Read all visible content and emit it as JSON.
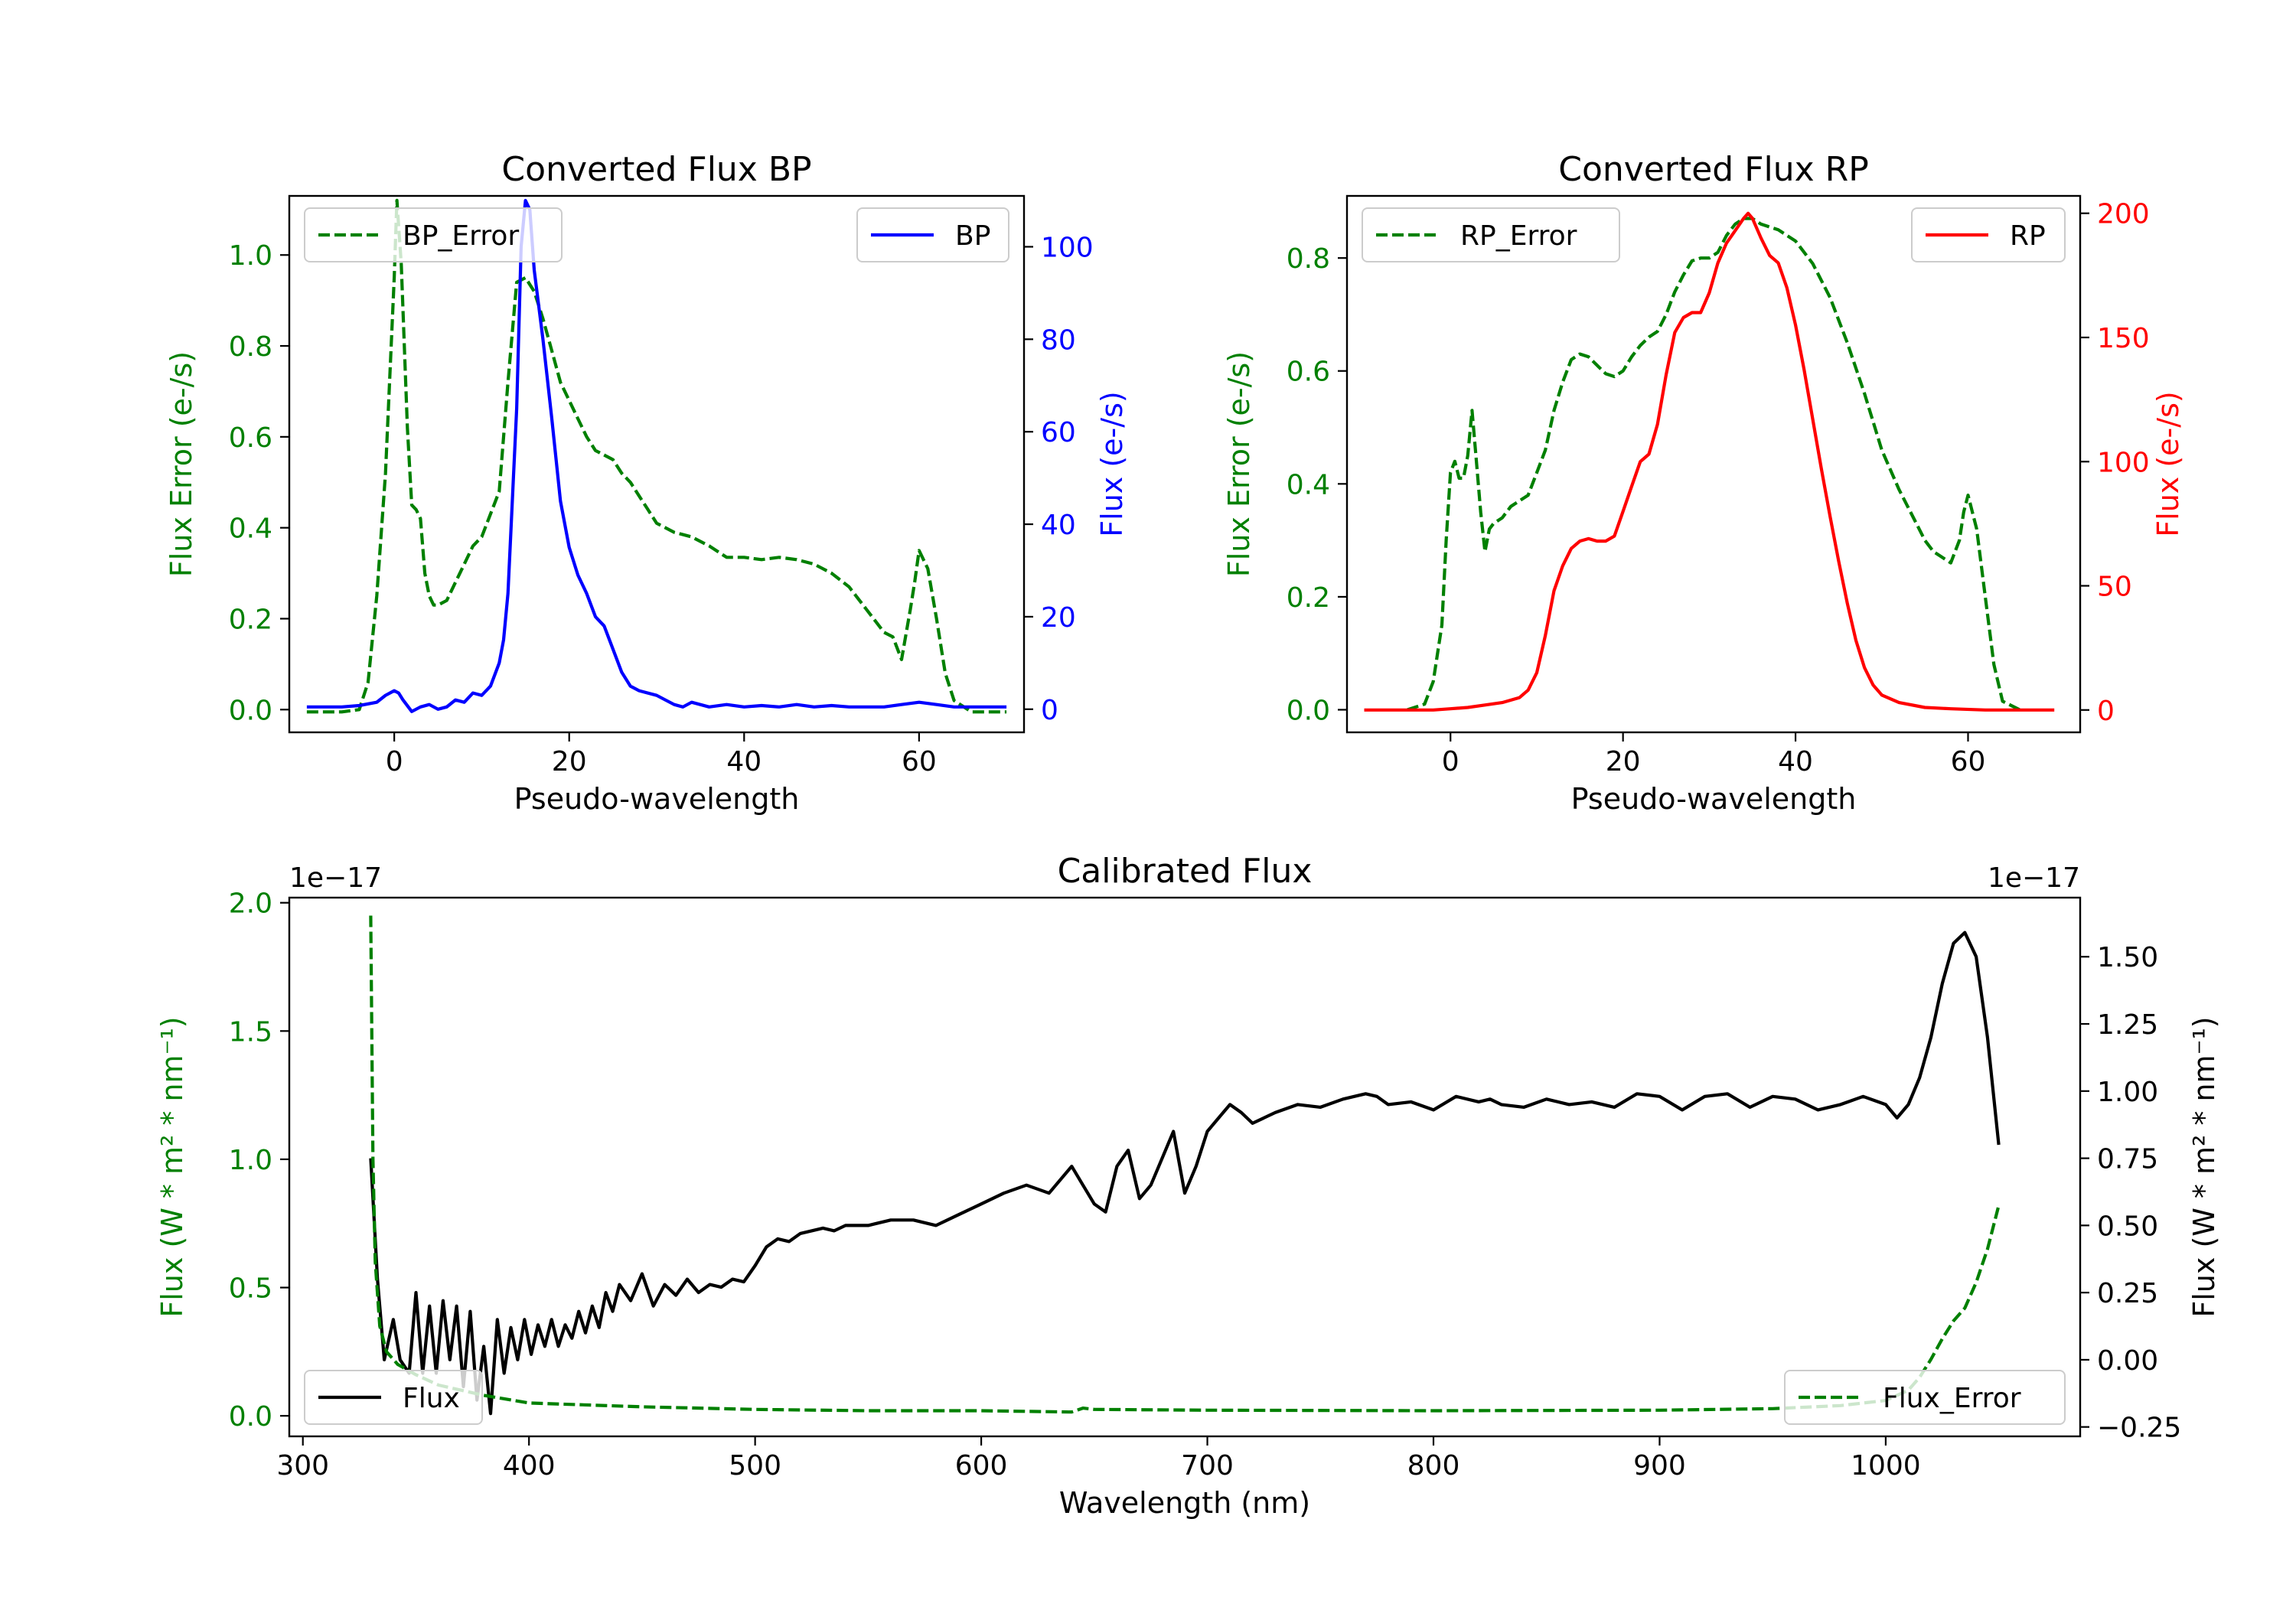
{
  "chart_data": [
    {
      "id": "bp",
      "type": "line",
      "title": "Converted Flux BP",
      "xlabel": "Pseudo-wavelength",
      "ylabel_left": "Flux Error (e-/s)",
      "ylabel_right": "Flux (e-/s)",
      "xlim": [
        -12,
        72
      ],
      "ylim_left": [
        -0.05,
        1.13
      ],
      "ylim_right": [
        -5,
        111
      ],
      "xticks": [
        0,
        20,
        40,
        60
      ],
      "xtick_labels": [
        "0",
        "20",
        "40",
        "60"
      ],
      "yticks_left": [
        0.0,
        0.2,
        0.4,
        0.6,
        0.8,
        1.0
      ],
      "ytick_labels_left": [
        "0.0",
        "0.2",
        "0.4",
        "0.6",
        "0.8",
        "1.0"
      ],
      "yticks_right": [
        0,
        20,
        40,
        60,
        80,
        100
      ],
      "ytick_labels_right": [
        "0",
        "20",
        "40",
        "60",
        "80",
        "100"
      ],
      "colors": {
        "left_axis": "#008000",
        "right_axis": "#0000ff"
      },
      "series": [
        {
          "name": "BP_Error",
          "axis": "left",
          "color": "#008000",
          "dashed": true,
          "x": [
            -10,
            -6,
            -4,
            -3,
            -2,
            -1,
            0,
            0.3,
            0.8,
            1.5,
            2,
            2.5,
            3,
            3.5,
            4,
            4.5,
            5,
            6,
            7,
            8,
            9,
            10,
            11,
            12,
            13,
            14,
            15,
            16,
            17,
            18,
            19,
            20,
            21,
            22,
            23,
            24,
            25,
            26,
            27,
            28,
            29,
            30,
            32,
            34,
            36,
            38,
            40,
            42,
            44,
            46,
            48,
            50,
            52,
            54,
            56,
            57,
            58,
            59,
            59.5,
            60,
            61,
            62,
            63,
            64,
            66,
            70
          ],
          "y": [
            -0.005,
            -0.005,
            0.0,
            0.06,
            0.25,
            0.52,
            0.95,
            1.12,
            0.98,
            0.62,
            0.45,
            0.44,
            0.42,
            0.3,
            0.25,
            0.23,
            0.23,
            0.24,
            0.28,
            0.32,
            0.36,
            0.38,
            0.43,
            0.48,
            0.72,
            0.94,
            0.95,
            0.92,
            0.86,
            0.79,
            0.72,
            0.68,
            0.64,
            0.6,
            0.57,
            0.56,
            0.55,
            0.52,
            0.5,
            0.47,
            0.44,
            0.41,
            0.39,
            0.38,
            0.36,
            0.335,
            0.335,
            0.33,
            0.335,
            0.33,
            0.32,
            0.3,
            0.27,
            0.22,
            0.17,
            0.16,
            0.11,
            0.22,
            0.28,
            0.35,
            0.31,
            0.2,
            0.08,
            0.02,
            -0.005,
            -0.005
          ]
        },
        {
          "name": "BP",
          "axis": "right",
          "color": "#0000ff",
          "dashed": false,
          "x": [
            -10,
            -6,
            -4,
            -2,
            -1,
            0,
            0.5,
            1,
            2,
            3,
            4,
            5,
            6,
            7,
            8,
            9,
            10,
            11,
            12,
            12.5,
            13,
            14,
            14.5,
            15,
            15.5,
            16,
            17,
            18,
            19,
            20,
            21,
            22,
            23,
            24,
            25,
            26,
            27,
            28,
            30,
            31,
            32,
            33,
            34,
            36,
            38,
            40,
            42,
            44,
            46,
            48,
            50,
            52,
            54,
            56,
            58,
            60,
            62,
            64,
            66,
            70
          ],
          "y": [
            0.5,
            0.5,
            0.8,
            1.5,
            3,
            4,
            3.5,
            2,
            -0.5,
            0.5,
            1,
            0,
            0.5,
            2,
            1.5,
            3.5,
            3,
            5,
            10,
            15,
            25,
            65,
            100,
            110,
            108,
            95,
            80,
            63,
            45,
            35,
            29,
            25,
            20,
            18,
            13,
            8,
            5,
            4,
            3,
            2,
            1,
            0.5,
            1.5,
            0.5,
            1,
            0.5,
            0.8,
            0.5,
            1,
            0.5,
            0.8,
            0.5,
            0.5,
            0.5,
            1,
            1.5,
            1,
            0.5,
            0.5,
            0.5
          ]
        }
      ],
      "legend": {
        "left": "BP_Error",
        "right": "BP"
      }
    },
    {
      "id": "rp",
      "type": "line",
      "title": "Converted Flux RP",
      "xlabel": "Pseudo-wavelength",
      "ylabel_left": "Flux Error (e-/s)",
      "ylabel_right": "Flux (e-/s)",
      "xlim": [
        -12,
        73
      ],
      "ylim_left": [
        -0.04,
        0.91
      ],
      "ylim_right": [
        -9,
        207
      ],
      "xticks": [
        0,
        20,
        40,
        60
      ],
      "xtick_labels": [
        "0",
        "20",
        "40",
        "60"
      ],
      "yticks_left": [
        0.0,
        0.2,
        0.4,
        0.6,
        0.8
      ],
      "ytick_labels_left": [
        "0.0",
        "0.2",
        "0.4",
        "0.6",
        "0.8"
      ],
      "yticks_right": [
        0,
        50,
        100,
        150,
        200
      ],
      "ytick_labels_right": [
        "0",
        "50",
        "100",
        "150",
        "200"
      ],
      "colors": {
        "left_axis": "#008000",
        "right_axis": "#ff0000"
      },
      "series": [
        {
          "name": "RP_Error",
          "axis": "left",
          "color": "#008000",
          "dashed": true,
          "x": [
            -5,
            -3,
            -2,
            -1,
            -0.5,
            0,
            0.5,
            1,
            1.5,
            2,
            2.5,
            3,
            3.5,
            4,
            4.5,
            5,
            6,
            7,
            8,
            9,
            10,
            11,
            12,
            13,
            14,
            15,
            16,
            17,
            18,
            19,
            20,
            21,
            22,
            23,
            24,
            25,
            26,
            27,
            28,
            29,
            30,
            31,
            32,
            33,
            34,
            35,
            36,
            37,
            38,
            40,
            42,
            44,
            46,
            48,
            50,
            52,
            54,
            55,
            56,
            57,
            58,
            59,
            59.5,
            60,
            61,
            62,
            63,
            64,
            66
          ],
          "y": [
            0.0,
            0.01,
            0.05,
            0.15,
            0.3,
            0.42,
            0.44,
            0.41,
            0.41,
            0.45,
            0.53,
            0.44,
            0.35,
            0.28,
            0.32,
            0.33,
            0.34,
            0.36,
            0.37,
            0.38,
            0.42,
            0.46,
            0.53,
            0.58,
            0.62,
            0.63,
            0.625,
            0.61,
            0.595,
            0.59,
            0.6,
            0.625,
            0.645,
            0.66,
            0.67,
            0.7,
            0.74,
            0.77,
            0.795,
            0.8,
            0.8,
            0.81,
            0.84,
            0.86,
            0.87,
            0.87,
            0.86,
            0.855,
            0.85,
            0.83,
            0.79,
            0.73,
            0.65,
            0.56,
            0.46,
            0.39,
            0.33,
            0.3,
            0.28,
            0.27,
            0.26,
            0.3,
            0.35,
            0.38,
            0.32,
            0.2,
            0.08,
            0.015,
            0.0
          ]
        },
        {
          "name": "RP",
          "axis": "right",
          "color": "#ff0000",
          "dashed": false,
          "x": [
            -10,
            -6,
            -4,
            -2,
            0,
            2,
            4,
            6,
            8,
            9,
            10,
            11,
            12,
            13,
            14,
            15,
            16,
            17,
            18,
            19,
            20,
            21,
            22,
            23,
            24,
            25,
            26,
            27,
            28,
            29,
            30,
            31,
            32,
            33,
            34,
            34.5,
            35,
            36,
            37,
            38,
            39,
            40,
            41,
            42,
            43,
            44,
            45,
            46,
            47,
            48,
            49,
            50,
            52,
            55,
            58,
            62,
            66,
            70
          ],
          "y": [
            0,
            0,
            0,
            0,
            0.5,
            1,
            2,
            3,
            5,
            8,
            15,
            30,
            48,
            58,
            65,
            68,
            69,
            68,
            68,
            70,
            80,
            90,
            100,
            103,
            115,
            135,
            152,
            158,
            160,
            160,
            168,
            180,
            188,
            193,
            198,
            200,
            198,
            190,
            183,
            180,
            170,
            155,
            137,
            117,
            97,
            78,
            60,
            43,
            28,
            17,
            10,
            6,
            3,
            1,
            0.5,
            0,
            0,
            0
          ]
        }
      ],
      "legend": {
        "left": "RP_Error",
        "right": "RP"
      }
    },
    {
      "id": "cal",
      "type": "line",
      "title": "Calibrated Flux",
      "xlabel": "Wavelength (nm)",
      "ylabel_left": "Flux (W * m² * nm⁻¹)",
      "ylabel_right": "Flux (W * m² * nm⁻¹)",
      "offset_text_left": "1e−17",
      "offset_text_right": "1e−17",
      "xlim": [
        294,
        1086
      ],
      "ylim_left": [
        -0.08,
        2.02
      ],
      "ylim_right": [
        -0.285,
        1.72
      ],
      "xticks": [
        300,
        400,
        500,
        600,
        700,
        800,
        900,
        1000
      ],
      "xtick_labels": [
        "300",
        "400",
        "500",
        "600",
        "700",
        "800",
        "900",
        "1000"
      ],
      "yticks_left": [
        0.0,
        0.5,
        1.0,
        1.5,
        2.0
      ],
      "ytick_labels_left": [
        "0.0",
        "0.5",
        "1.0",
        "1.5",
        "2.0"
      ],
      "yticks_right": [
        -0.25,
        0.0,
        0.25,
        0.5,
        0.75,
        1.0,
        1.25,
        1.5
      ],
      "ytick_labels_right": [
        "−0.25",
        "0.00",
        "0.25",
        "0.50",
        "0.75",
        "1.00",
        "1.25",
        "1.50"
      ],
      "colors": {
        "left_axis": "#008000",
        "right_axis": "#000000"
      },
      "series": [
        {
          "name": "Flux",
          "axis": "right",
          "color": "#000000",
          "dashed": false,
          "x": [
            330,
            333,
            336,
            340,
            343,
            347,
            350,
            353,
            356,
            359,
            362,
            365,
            368,
            371,
            374,
            377,
            380,
            383,
            386,
            389,
            392,
            395,
            398,
            401,
            404,
            407,
            410,
            413,
            416,
            419,
            422,
            425,
            428,
            431,
            434,
            437,
            440,
            445,
            450,
            455,
            460,
            465,
            470,
            475,
            480,
            485,
            490,
            495,
            500,
            505,
            510,
            515,
            520,
            525,
            530,
            535,
            540,
            550,
            560,
            570,
            580,
            590,
            600,
            610,
            620,
            630,
            640,
            645,
            650,
            655,
            660,
            665,
            670,
            675,
            680,
            685,
            690,
            695,
            700,
            705,
            710,
            715,
            720,
            725,
            730,
            740,
            750,
            760,
            770,
            775,
            780,
            790,
            800,
            810,
            820,
            825,
            830,
            840,
            850,
            860,
            870,
            880,
            890,
            900,
            910,
            920,
            930,
            940,
            950,
            960,
            970,
            980,
            990,
            1000,
            1005,
            1010,
            1015,
            1020,
            1025,
            1030,
            1035,
            1040,
            1045,
            1050
          ],
          "y": [
            0.75,
            0.3,
            0.0,
            0.15,
            0.0,
            -0.05,
            0.25,
            -0.05,
            0.2,
            -0.05,
            0.22,
            0.0,
            0.2,
            -0.1,
            0.18,
            -0.15,
            0.05,
            -0.2,
            0.15,
            -0.05,
            0.12,
            0.0,
            0.15,
            0.02,
            0.13,
            0.05,
            0.15,
            0.05,
            0.13,
            0.08,
            0.18,
            0.1,
            0.2,
            0.12,
            0.25,
            0.18,
            0.28,
            0.22,
            0.32,
            0.2,
            0.28,
            0.24,
            0.3,
            0.25,
            0.28,
            0.27,
            0.3,
            0.29,
            0.35,
            0.42,
            0.45,
            0.44,
            0.47,
            0.48,
            0.49,
            0.48,
            0.5,
            0.5,
            0.52,
            0.52,
            0.5,
            0.54,
            0.58,
            0.62,
            0.65,
            0.62,
            0.72,
            0.65,
            0.58,
            0.55,
            0.72,
            0.78,
            0.6,
            0.65,
            0.75,
            0.85,
            0.62,
            0.72,
            0.85,
            0.9,
            0.95,
            0.92,
            0.88,
            0.9,
            0.92,
            0.95,
            0.94,
            0.97,
            0.99,
            0.98,
            0.95,
            0.96,
            0.93,
            0.98,
            0.96,
            0.97,
            0.95,
            0.94,
            0.97,
            0.95,
            0.96,
            0.94,
            0.99,
            0.98,
            0.93,
            0.98,
            0.99,
            0.94,
            0.98,
            0.97,
            0.93,
            0.95,
            0.98,
            0.95,
            0.9,
            0.95,
            1.05,
            1.2,
            1.4,
            1.55,
            1.59,
            1.5,
            1.2,
            0.8
          ]
        },
        {
          "name": "Flux_Error",
          "axis": "left",
          "color": "#008000",
          "dashed": true,
          "x": [
            330,
            331,
            332,
            334,
            337,
            342,
            350,
            360,
            380,
            400,
            450,
            500,
            550,
            600,
            640,
            645,
            650,
            700,
            800,
            900,
            950,
            980,
            1000,
            1010,
            1015,
            1020,
            1025,
            1030,
            1035,
            1040,
            1045,
            1050
          ],
          "y": [
            1.95,
            1.0,
            0.6,
            0.35,
            0.25,
            0.2,
            0.16,
            0.12,
            0.08,
            0.05,
            0.035,
            0.025,
            0.02,
            0.02,
            0.015,
            0.03,
            0.025,
            0.022,
            0.02,
            0.022,
            0.028,
            0.04,
            0.06,
            0.1,
            0.15,
            0.22,
            0.3,
            0.37,
            0.42,
            0.52,
            0.65,
            0.82
          ]
        }
      ],
      "legend": {
        "left": "Flux",
        "right": "Flux_Error"
      }
    }
  ]
}
